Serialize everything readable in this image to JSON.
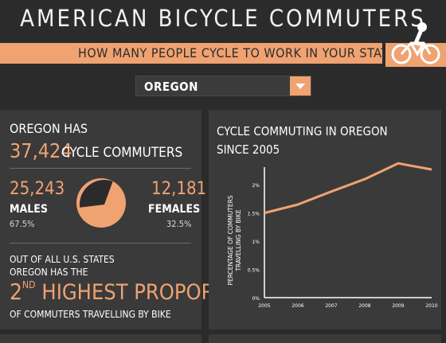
{
  "header": {
    "title": "AMERICAN BICYCLE COMMUTERS",
    "subtitle": "HOW MANY PEOPLE CYCLE TO WORK IN YOUR STATE?"
  },
  "selector": {
    "selected": "OREGON"
  },
  "summary": {
    "heading": "OREGON HAS",
    "total": "37,424",
    "total_suffix": "CYCLE COMMUTERS",
    "males_count": "25,243",
    "males_label": "MALES",
    "males_pct": "67.5%",
    "females_count": "12,181",
    "females_label": "FEMALES",
    "females_pct": "32.5%",
    "male_share": 0.675
  },
  "ranking": {
    "line1": "OUT OF ALL U.S. STATES",
    "line2": "OREGON HAS THE",
    "rank_num": "2",
    "rank_sup": "ND",
    "rank_text": "HIGHEST PROPORTION",
    "line4": "OF COMMUTERS TRAVELLING BY BIKE"
  },
  "chart_data": {
    "type": "line",
    "title": "CYCLE COMMUTING IN OREGON",
    "subtitle": "SINCE 2005",
    "ylabel": "PERCENTAGE OF COMMUTERS TRAVELLING BY BIKE",
    "x": [
      "2005",
      "2006",
      "2007",
      "2008",
      "2009",
      "2010"
    ],
    "y_ticks": [
      "0%",
      "0.5%",
      "1%",
      "1.5%",
      "2%"
    ],
    "ylim": [
      0,
      2.2
    ],
    "series": [
      {
        "values": [
          1.5,
          1.65,
          1.88,
          2.1,
          2.38,
          2.27
        ]
      }
    ]
  },
  "colors": {
    "accent": "#f0a271",
    "background": "#2b2b2b",
    "panel": "#3a3a3a"
  }
}
